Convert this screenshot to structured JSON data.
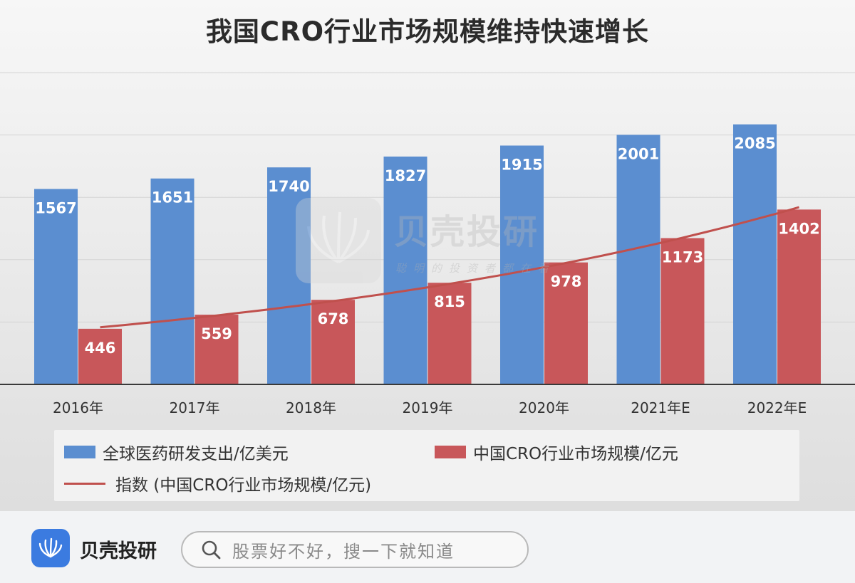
{
  "title": "我国CRO行业市场规模维持快速增长",
  "watermark": {
    "brand": "贝壳投研",
    "slogan": "聪明的投资者都在看"
  },
  "legend": {
    "series1": "全球医药研发支出/亿美元",
    "series2": "中国CRO行业市场规模/亿元",
    "trend": "指数 (中国CRO行业市场规模/亿元)"
  },
  "footer": {
    "brand": "贝壳投研",
    "search_placeholder": "股票好不好，搜一下就知道"
  },
  "colors": {
    "blue": "#5b8ed0",
    "red": "#c8575a",
    "trend": "#c0504d"
  },
  "chart_data": {
    "type": "bar",
    "title": "我国CRO行业市场规模维持快速增长",
    "categories": [
      "2016年",
      "2017年",
      "2018年",
      "2019年",
      "2020年",
      "2021年E",
      "2022年E"
    ],
    "series": [
      {
        "name": "全球医药研发支出/亿美元",
        "values": [
          1567,
          1651,
          1740,
          1827,
          1915,
          2001,
          2085
        ],
        "color": "#5b8ed0"
      },
      {
        "name": "中国CRO行业市场规模/亿元",
        "values": [
          446,
          559,
          678,
          815,
          978,
          1173,
          1402
        ],
        "color": "#c8575a"
      }
    ],
    "trendline": {
      "name": "指数 (中国CRO行业市场规模/亿元)",
      "type": "exponential",
      "of_series": 1
    },
    "ylim": [
      0,
      2500
    ],
    "grid": true,
    "legend_position": "bottom",
    "y_axis_labels_shown": false
  }
}
